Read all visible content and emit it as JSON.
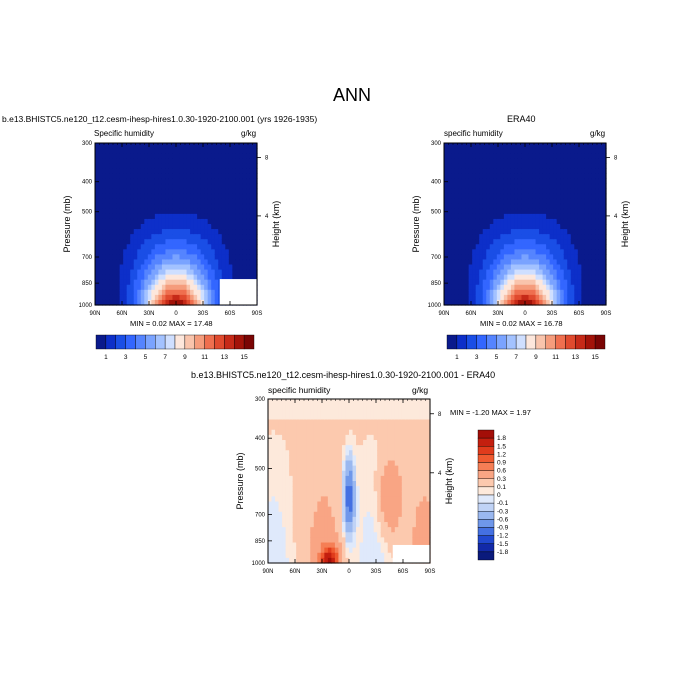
{
  "page_title": "ANN",
  "panels": {
    "model": {
      "header": "b.e13.BHISTC5.ne120_t12.cesm-ihesp-hires1.0.30-1920-2100.001 (yrs 1926-1935)",
      "left_label": "Specific humidity",
      "right_label": "g/kg",
      "stats": "MIN =   0.02  MAX =  17.48"
    },
    "obs": {
      "header": "ERA40",
      "left_label": "specific humidity",
      "right_label": "g/kg",
      "stats": "MIN =   0.02  MAX =  16.78"
    },
    "diff": {
      "header": "b.e13.BHISTC5.ne120_t12.cesm-ihesp-hires1.0.30-1920-2100.001 - ERA40",
      "left_label": "specific humidity",
      "right_label": "g/kg",
      "stats": "MIN =  -1.20  MAX =   1.97"
    }
  },
  "chart_data": [
    {
      "type": "heatmap",
      "subtype": "latitude-pressure contour",
      "title": "b.e13.BHISTC5.ne120_t12.cesm-ihesp-hires1.0.30-1920-2100.001 (yrs 1926-1935)",
      "xlabel": "",
      "ylabel": "Pressure (mb)",
      "y2label": "Height (km)",
      "x_ticks": [
        "90N",
        "60N",
        "30N",
        "0",
        "30S",
        "60S",
        "90S"
      ],
      "y_ticks": [
        "300",
        "400",
        "500",
        "700",
        "850",
        "1000"
      ],
      "y2_ticks": [
        "8",
        "4"
      ],
      "y_scale": "log-pressure",
      "levels": [
        "1",
        "3",
        "5",
        "7",
        "9",
        "11",
        "13",
        "15"
      ],
      "min": 0.02,
      "max": 17.48,
      "units": "g/kg"
    },
    {
      "type": "heatmap",
      "subtype": "latitude-pressure contour",
      "title": "ERA40",
      "ylabel": "Pressure (mb)",
      "y2label": "Height (km)",
      "x_ticks": [
        "90N",
        "60N",
        "30N",
        "0",
        "30S",
        "60S",
        "90S"
      ],
      "y_ticks": [
        "300",
        "400",
        "500",
        "700",
        "850",
        "1000"
      ],
      "y2_ticks": [
        "8",
        "4"
      ],
      "levels": [
        "1",
        "3",
        "5",
        "7",
        "9",
        "11",
        "13",
        "15"
      ],
      "min": 0.02,
      "max": 16.78,
      "units": "g/kg"
    },
    {
      "type": "heatmap",
      "subtype": "latitude-pressure contour difference",
      "title": "b.e13.BHISTC5.ne120_t12.cesm-ihesp-hires1.0.30-1920-2100.001 - ERA40",
      "ylabel": "Pressure (mb)",
      "y2label": "Height (km)",
      "x_ticks": [
        "90N",
        "60N",
        "30N",
        "0",
        "30S",
        "60S",
        "90S"
      ],
      "y_ticks": [
        "300",
        "400",
        "500",
        "700",
        "850",
        "1000"
      ],
      "y2_ticks": [
        "8",
        "4"
      ],
      "levels": [
        "1.8",
        "1.5",
        "1.2",
        "0.9",
        "0.6",
        "0.3",
        "0.1",
        "0",
        "-0.1",
        "-0.3",
        "-0.6",
        "-0.9",
        "-1.2",
        "-1.5",
        "-1.8"
      ],
      "min": -1.2,
      "max": 1.97,
      "units": "g/kg"
    }
  ],
  "colorbars": {
    "abs_colors": [
      "#0a1a8c",
      "#0d2fc9",
      "#1a4ee6",
      "#3366ff",
      "#5584ff",
      "#7aa3ff",
      "#a3c2ff",
      "#cfdfff",
      "#fde7dc",
      "#f9c4ac",
      "#f59c7c",
      "#ef6f4f",
      "#e04a2e",
      "#c62a18",
      "#a31309",
      "#7a0504"
    ],
    "abs_labels": [
      "1",
      "3",
      "5",
      "7",
      "9",
      "11",
      "13",
      "15"
    ],
    "diff_colors": [
      "#a30e08",
      "#c41f0f",
      "#e03b1c",
      "#ef5a30",
      "#f57e55",
      "#f9a584",
      "#fcc9ae",
      "#fde9db",
      "#dfe9fb",
      "#c0d3f6",
      "#9ab8f0",
      "#6f97ea",
      "#4470e2",
      "#2148cf",
      "#1229a8",
      "#0a1a7c"
    ],
    "diff_labels": [
      "1.8",
      "1.5",
      "1.2",
      "0.9",
      "0.6",
      "0.3",
      "0.1",
      "0",
      "-0.1",
      "-0.3",
      "-0.6",
      "-0.9",
      "-1.2",
      "-1.5",
      "-1.8"
    ]
  }
}
